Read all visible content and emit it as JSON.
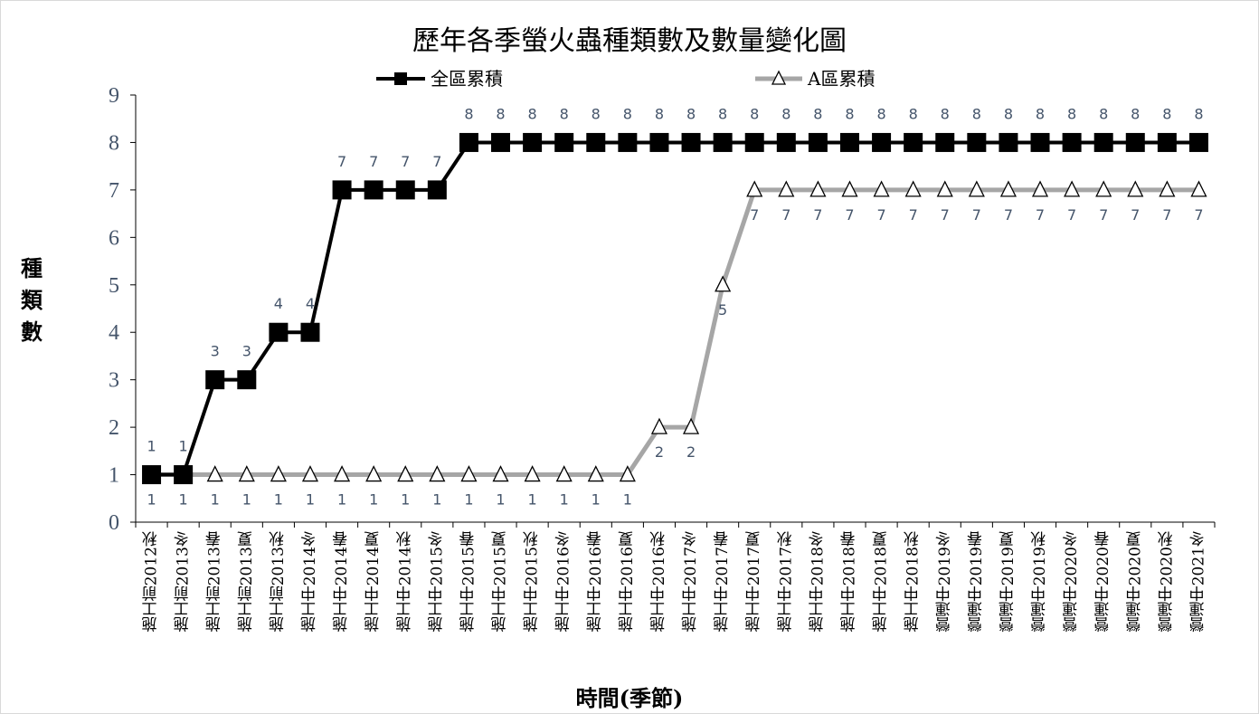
{
  "chart_data": {
    "type": "line",
    "title": "歷年各季螢火蟲種類數及數量變化圖",
    "xlabel": "時間(季節)",
    "ylabel": "種類數",
    "ylim": [
      0,
      9
    ],
    "yticks": [
      "0",
      "1",
      "2",
      "3",
      "4",
      "5",
      "6",
      "7",
      "8",
      "9"
    ],
    "grid": false,
    "legend_position": "top",
    "categories": [
      "施工前2012秋",
      "施工前2013冬",
      "施工前2013春",
      "施工前2013夏",
      "施工前2013秋",
      "施工中2014冬",
      "施工中2014春",
      "施工中2014夏",
      "施工中2014秋",
      "施工中2015冬",
      "施工中2015春",
      "施工中2015夏",
      "施工中2015秋",
      "施工中2016冬",
      "施工中2016春",
      "施工中2016夏",
      "施工中2016秋",
      "施工中2017冬",
      "施工中2017春",
      "施工中2017夏",
      "施工中2017秋",
      "施工中2018冬",
      "施工中2018春",
      "施工中2018夏",
      "施工中2018秋",
      "營運中2019冬",
      "營運中2019春",
      "營運中2019夏",
      "營運中2019秋",
      "營運中2020冬",
      "營運中2020春",
      "營運中2020夏",
      "營運中2020秋",
      "營運中2021冬"
    ],
    "series": [
      {
        "name": "全區累積",
        "color": "#000000",
        "marker": "square",
        "values": [
          1,
          1,
          3,
          3,
          4,
          4,
          7,
          7,
          7,
          7,
          8,
          8,
          8,
          8,
          8,
          8,
          8,
          8,
          8,
          8,
          8,
          8,
          8,
          8,
          8,
          8,
          8,
          8,
          8,
          8,
          8,
          8,
          8,
          8
        ],
        "labels_above": true
      },
      {
        "name": "A區累積",
        "color": "#a6a6a6",
        "marker": "triangle",
        "values": [
          1,
          1,
          1,
          1,
          1,
          1,
          1,
          1,
          1,
          1,
          1,
          1,
          1,
          1,
          1,
          1,
          2,
          2,
          5,
          7,
          7,
          7,
          7,
          7,
          7,
          7,
          7,
          7,
          7,
          7,
          7,
          7,
          7,
          7
        ],
        "labels_above": false
      }
    ]
  }
}
